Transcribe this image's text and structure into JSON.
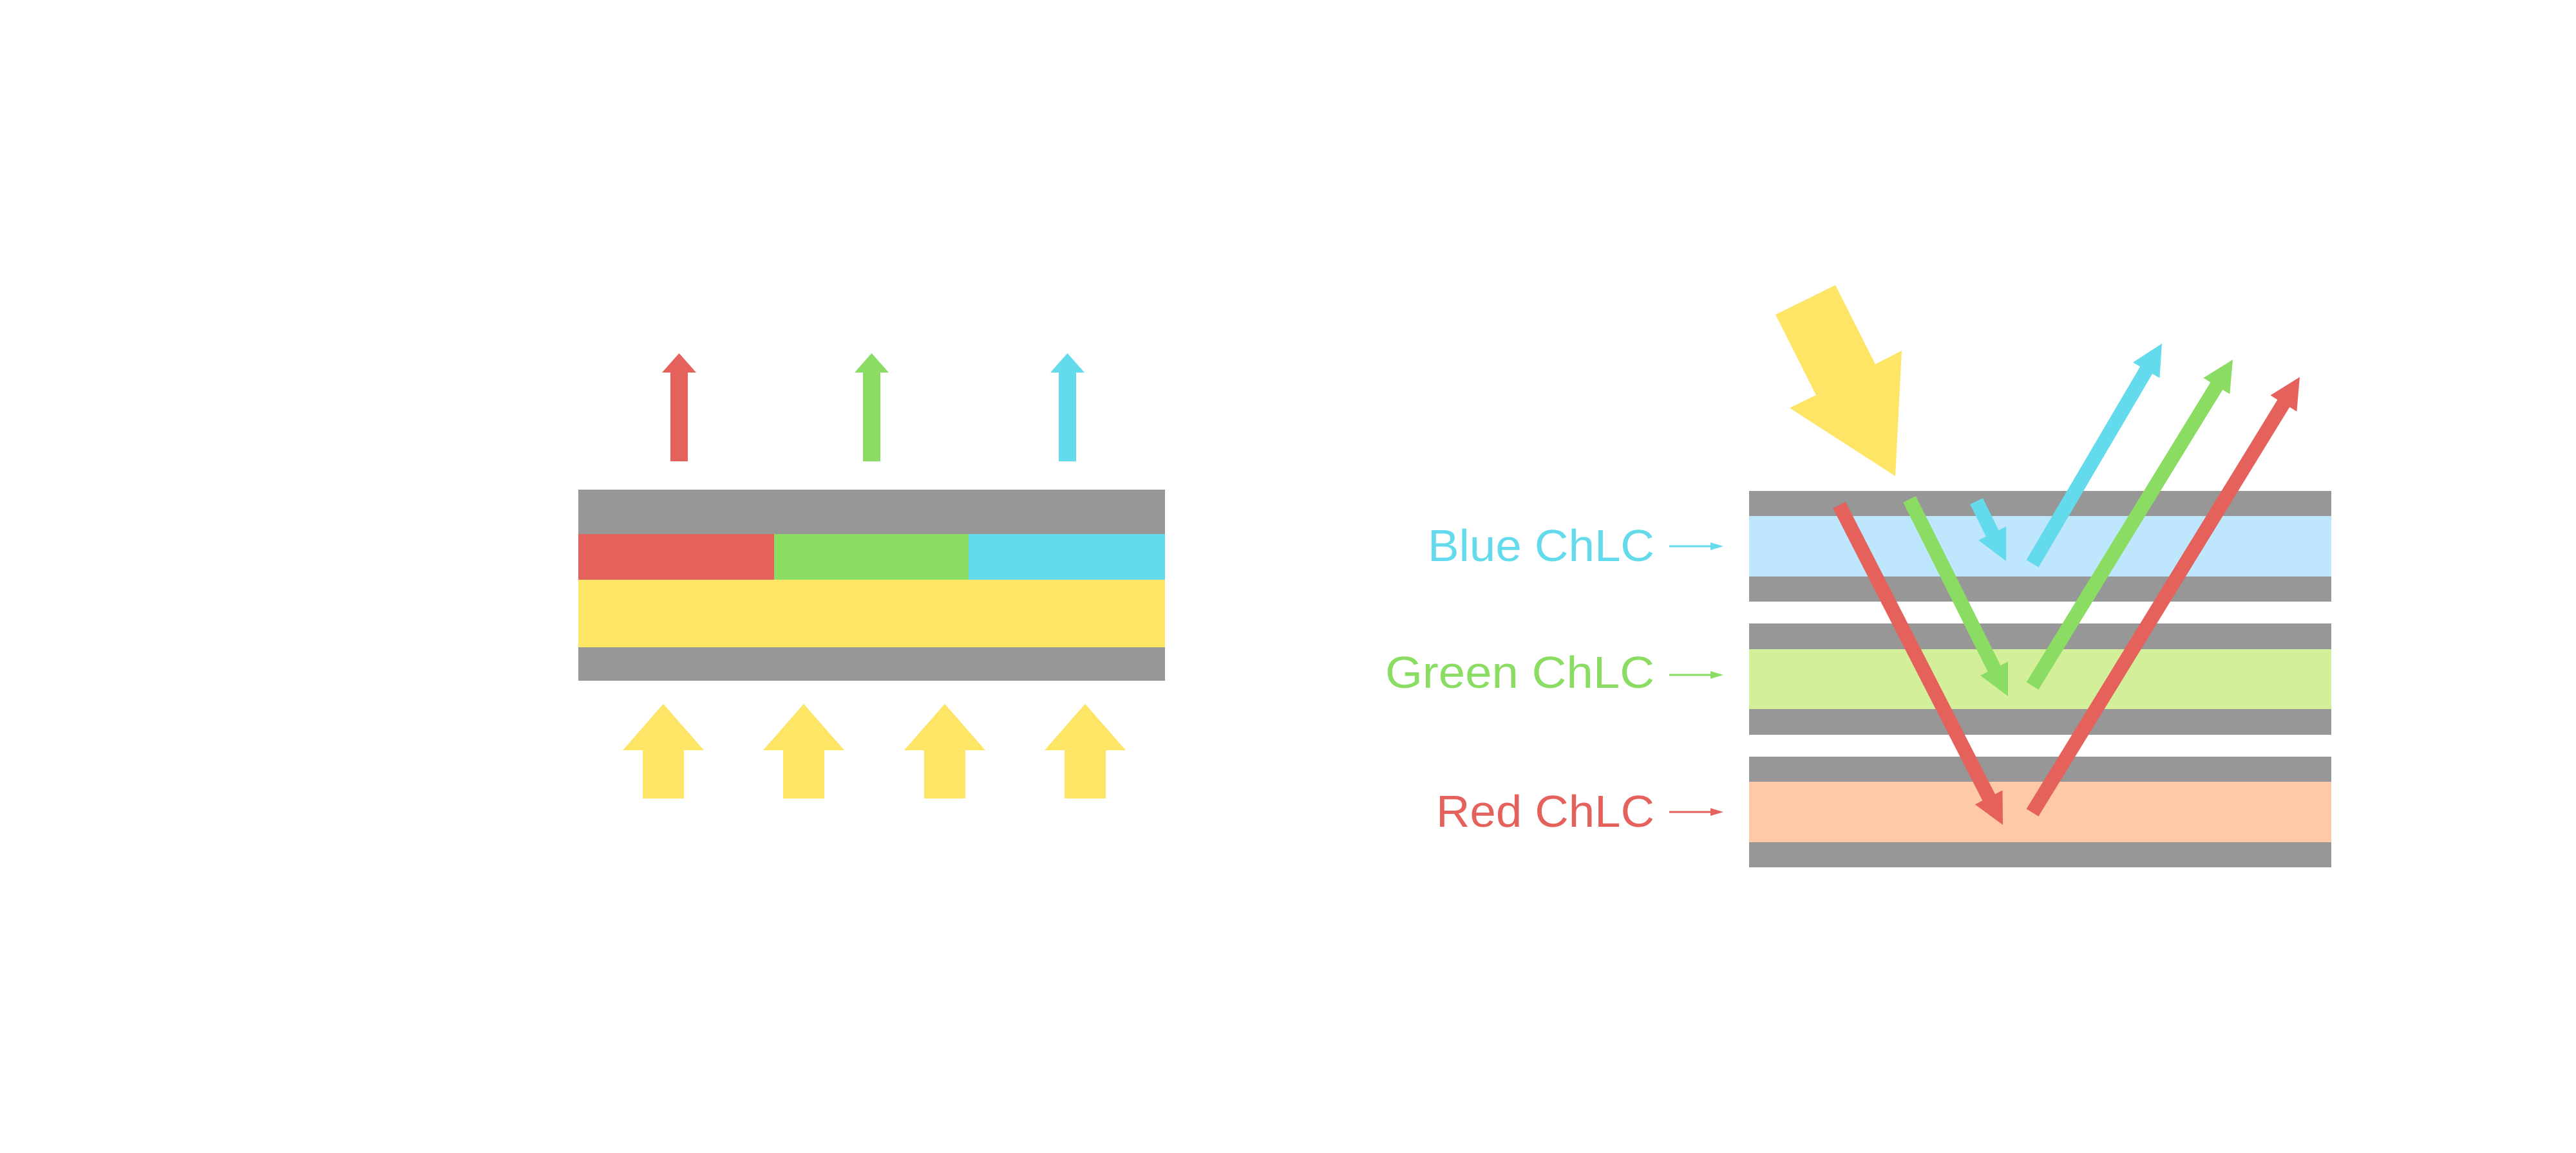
{
  "colors": {
    "gray": "#979797",
    "red": "#e5615c",
    "green": "#8adc62",
    "blue": "#63dbed",
    "yellow": "#fee566",
    "light_blue": "#bee6fc",
    "light_green": "#d3ef99",
    "peach": "#fdc9a8"
  },
  "labels": {
    "blue": "Blue ChLC",
    "green": "Green ChLC",
    "red": "Red ChLC"
  },
  "icons": [
    "light-arrow-icon",
    "reflected-arrow-icon",
    "pointer-arrow-icon"
  ]
}
